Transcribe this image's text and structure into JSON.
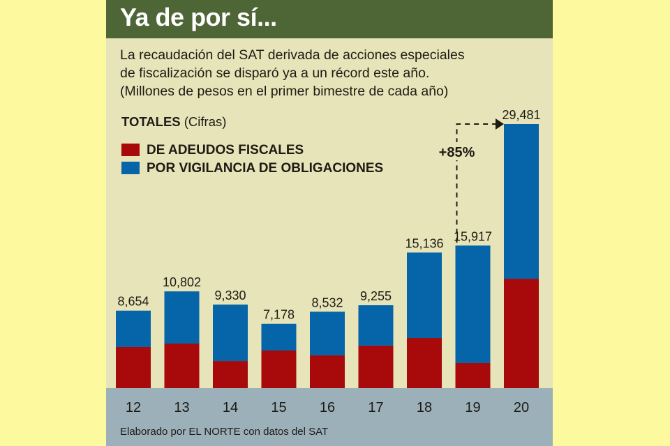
{
  "header": {
    "title": "Ya de por sí..."
  },
  "subtitle": {
    "lines": [
      "La recaudación del SAT derivada de acciones especiales",
      "de fiscalización se disparó ya a un récord este año.",
      "(Millones de pesos en el primer bimestre de cada año)"
    ]
  },
  "totals_label": {
    "bold": "TOTALES",
    "normal": " (Cifras)"
  },
  "footer": {
    "credit": "Elaborado por EL NORTE con datos del SAT"
  },
  "colors": {
    "adeudos": "#a80a0b",
    "vigilancia": "#0565a8",
    "header": "#4e6536",
    "panel": "#e7e4b9",
    "footer": "#9cb0ba",
    "background": "#fdf99e"
  },
  "chart_data": {
    "type": "bar",
    "stacked": true,
    "title": "Ya de por sí...",
    "xlabel": "",
    "ylabel": "Millones de pesos",
    "categories": [
      "12",
      "13",
      "14",
      "15",
      "16",
      "17",
      "18",
      "19",
      "20"
    ],
    "totals": [
      8654,
      10802,
      9330,
      7178,
      8532,
      9255,
      15136,
      15917,
      29481
    ],
    "total_labels": [
      "8,654",
      "10,802",
      "9,330",
      "7,178",
      "8,532",
      "9,255",
      "15,136",
      "15,917",
      "29,481"
    ],
    "series": [
      {
        "name": "DE ADEUDOS FISCALES",
        "color": "#a80a0b",
        "values": [
          4590,
          4980,
          3030,
          4200,
          3660,
          4750,
          5600,
          2800,
          12210
        ]
      },
      {
        "name": "POR VIGILANCIA DE OBLIGACIONES",
        "color": "#0565a8",
        "values": [
          4064,
          5822,
          6300,
          2978,
          4872,
          4505,
          9536,
          13117,
          17271
        ]
      }
    ],
    "ylim": [
      0,
      29481
    ],
    "grid": false,
    "legend": "top-left",
    "annotation": {
      "text": "+85%",
      "from": "19",
      "to": "20"
    }
  }
}
